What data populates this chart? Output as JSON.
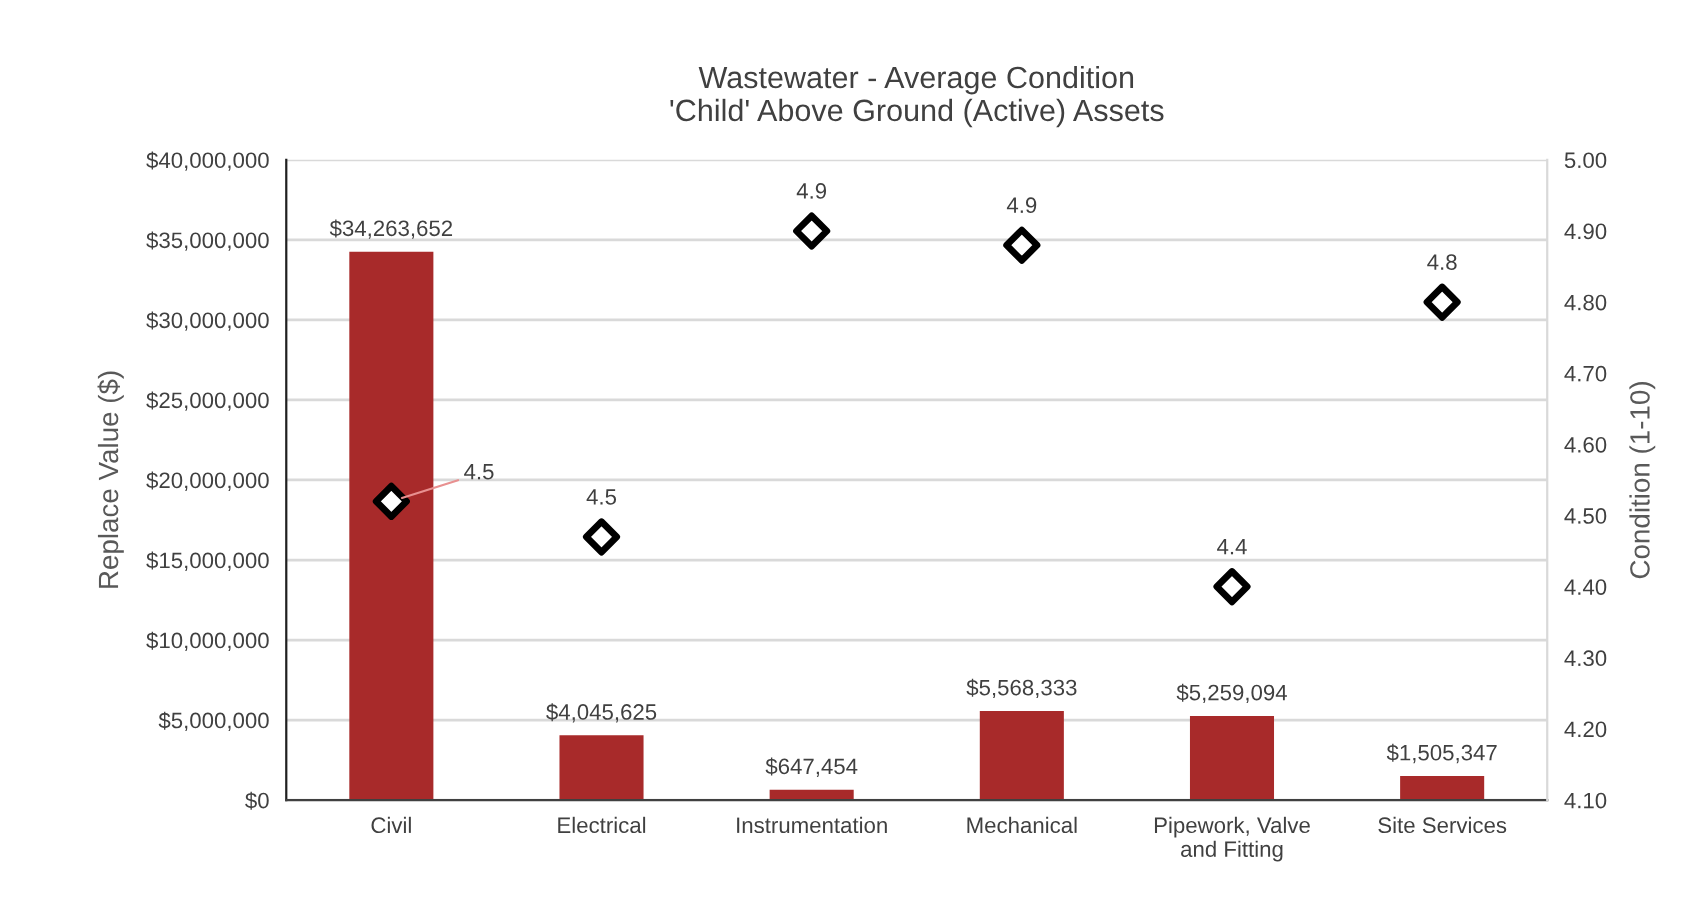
{
  "chart_data": {
    "type": "bar",
    "title": "Wastewater - Average Condition\n'Child' Above Ground (Active) Assets",
    "ylabel": "Replace Value ($)",
    "y2label": "Condition (1-10)",
    "categories": [
      "Civil",
      "Electrical",
      "Instrumentation",
      "Mechanical",
      "Pipework, Valve\nand Fitting",
      "Site Services"
    ],
    "series": [
      {
        "color": "#a82a2a",
        "values": [
          34263652,
          4045625,
          647454,
          5568333,
          5259094,
          1505347
        ],
        "value_labels": [
          "$34,263,652",
          "$4,045,625",
          "$647,454",
          "$5,568,333",
          "$5,259,094",
          "$1,505,347"
        ]
      },
      {
        "type": "scatter",
        "axis": "y2",
        "color": "#000000",
        "marker": "diamond",
        "values": [
          4.52,
          4.47,
          4.9,
          4.88,
          4.4,
          4.8
        ],
        "value_labels": [
          "4.5",
          "4.5",
          "4.9",
          "4.9",
          "4.4",
          "4.8"
        ]
      }
    ],
    "ylim": [
      0,
      40000000
    ],
    "yticks": [
      {
        "value": 0,
        "label": "$0"
      },
      {
        "value": 5000000,
        "label": "$5,000,000"
      },
      {
        "value": 10000000,
        "label": "$10,000,000"
      },
      {
        "value": 15000000,
        "label": "$15,000,000"
      },
      {
        "value": 20000000,
        "label": "$20,000,000"
      },
      {
        "value": 25000000,
        "label": "$25,000,000"
      },
      {
        "value": 30000000,
        "label": "$30,000,000"
      },
      {
        "value": 35000000,
        "label": "$35,000,000"
      },
      {
        "value": 40000000,
        "label": "$40,000,000"
      }
    ],
    "y2lim": [
      4.1,
      5.0
    ],
    "y2ticks": [
      {
        "value": 4.1,
        "label": "4.10"
      },
      {
        "value": 4.2,
        "label": "4.20"
      },
      {
        "value": 4.3,
        "label": "4.30"
      },
      {
        "value": 4.4,
        "label": "4.40"
      },
      {
        "value": 4.5,
        "label": "4.50"
      },
      {
        "value": 4.6,
        "label": "4.60"
      },
      {
        "value": 4.7,
        "label": "4.70"
      },
      {
        "value": 4.8,
        "label": "4.80"
      },
      {
        "value": 4.9,
        "label": "4.90"
      },
      {
        "value": 5.0,
        "label": "5.00"
      }
    ],
    "grid": "y"
  }
}
